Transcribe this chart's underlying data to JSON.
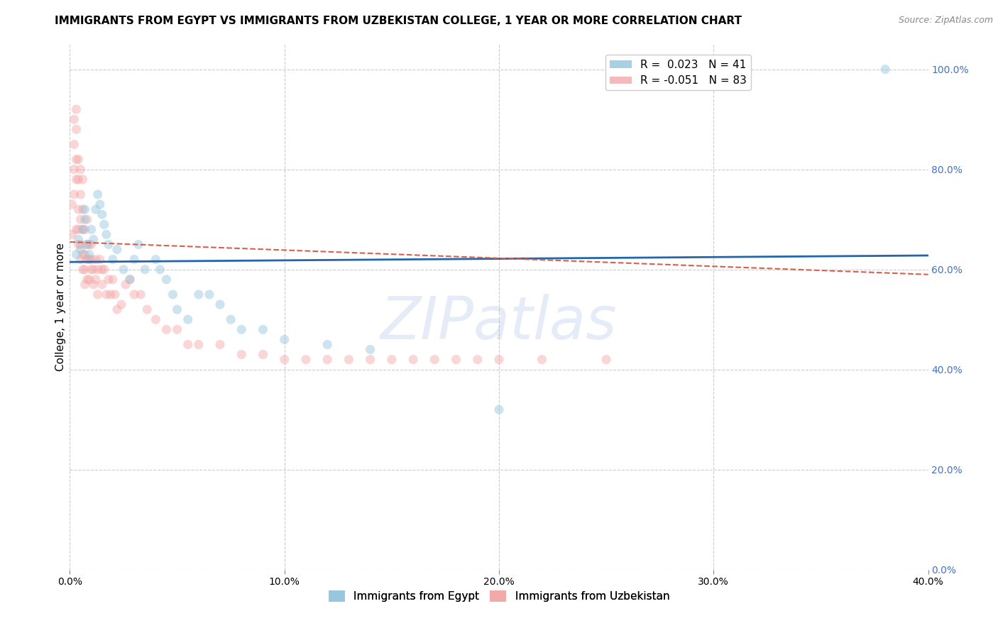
{
  "title": "IMMIGRANTS FROM EGYPT VS IMMIGRANTS FROM UZBEKISTAN COLLEGE, 1 YEAR OR MORE CORRELATION CHART",
  "source": "Source: ZipAtlas.com",
  "ylabel": "College, 1 year or more",
  "watermark": "ZIPatlas",
  "legend_egypt_r": "0.023",
  "legend_egypt_n": "41",
  "legend_uzbek_r": "-0.051",
  "legend_uzbek_n": "83",
  "egypt_color": "#92c5de",
  "uzbek_color": "#f4a6a6",
  "egypt_line_color": "#2166ac",
  "uzbek_line_color": "#d6604d",
  "right_tick_color": "#4472c4",
  "xlim": [
    0.0,
    0.4
  ],
  "ylim": [
    0.0,
    1.05
  ],
  "egypt_points_x": [
    0.003,
    0.004,
    0.005,
    0.006,
    0.007,
    0.007,
    0.008,
    0.009,
    0.01,
    0.011,
    0.012,
    0.013,
    0.014,
    0.015,
    0.016,
    0.017,
    0.018,
    0.02,
    0.022,
    0.025,
    0.028,
    0.03,
    0.032,
    0.035,
    0.04,
    0.042,
    0.045,
    0.048,
    0.05,
    0.055,
    0.06,
    0.065,
    0.07,
    0.075,
    0.08,
    0.09,
    0.1,
    0.12,
    0.14,
    0.2,
    0.38
  ],
  "egypt_points_y": [
    0.63,
    0.66,
    0.64,
    0.68,
    0.72,
    0.7,
    0.65,
    0.63,
    0.68,
    0.66,
    0.72,
    0.75,
    0.73,
    0.71,
    0.69,
    0.67,
    0.65,
    0.62,
    0.64,
    0.6,
    0.58,
    0.62,
    0.65,
    0.6,
    0.62,
    0.6,
    0.58,
    0.55,
    0.52,
    0.5,
    0.55,
    0.55,
    0.53,
    0.5,
    0.48,
    0.48,
    0.46,
    0.45,
    0.44,
    0.32,
    1.0
  ],
  "uzbek_points_x": [
    0.001,
    0.001,
    0.002,
    0.002,
    0.002,
    0.002,
    0.003,
    0.003,
    0.003,
    0.003,
    0.003,
    0.004,
    0.004,
    0.004,
    0.004,
    0.004,
    0.005,
    0.005,
    0.005,
    0.005,
    0.005,
    0.006,
    0.006,
    0.006,
    0.006,
    0.006,
    0.007,
    0.007,
    0.007,
    0.007,
    0.008,
    0.008,
    0.008,
    0.008,
    0.009,
    0.009,
    0.009,
    0.01,
    0.01,
    0.01,
    0.011,
    0.011,
    0.012,
    0.012,
    0.013,
    0.013,
    0.014,
    0.015,
    0.015,
    0.016,
    0.017,
    0.018,
    0.019,
    0.02,
    0.021,
    0.022,
    0.024,
    0.026,
    0.028,
    0.03,
    0.033,
    0.036,
    0.04,
    0.045,
    0.05,
    0.055,
    0.06,
    0.07,
    0.08,
    0.09,
    0.1,
    0.11,
    0.12,
    0.13,
    0.14,
    0.15,
    0.16,
    0.17,
    0.18,
    0.19,
    0.2,
    0.22,
    0.25
  ],
  "uzbek_points_y": [
    0.67,
    0.73,
    0.8,
    0.75,
    0.85,
    0.9,
    0.78,
    0.82,
    0.88,
    0.92,
    0.68,
    0.78,
    0.82,
    0.72,
    0.68,
    0.65,
    0.8,
    0.75,
    0.7,
    0.65,
    0.62,
    0.78,
    0.72,
    0.68,
    0.63,
    0.6,
    0.68,
    0.63,
    0.6,
    0.57,
    0.7,
    0.65,
    0.62,
    0.58,
    0.65,
    0.62,
    0.58,
    0.65,
    0.62,
    0.6,
    0.6,
    0.57,
    0.62,
    0.58,
    0.6,
    0.55,
    0.62,
    0.6,
    0.57,
    0.6,
    0.55,
    0.58,
    0.55,
    0.58,
    0.55,
    0.52,
    0.53,
    0.57,
    0.58,
    0.55,
    0.55,
    0.52,
    0.5,
    0.48,
    0.48,
    0.45,
    0.45,
    0.45,
    0.43,
    0.43,
    0.42,
    0.42,
    0.42,
    0.42,
    0.42,
    0.42,
    0.42,
    0.42,
    0.42,
    0.42,
    0.42,
    0.42,
    0.42
  ],
  "egypt_trend_x": [
    0.0,
    0.4
  ],
  "egypt_trend_y": [
    0.615,
    0.628
  ],
  "uzbek_trend_x": [
    0.0,
    0.4
  ],
  "uzbek_trend_y": [
    0.655,
    0.59
  ],
  "yticks": [
    0.0,
    0.2,
    0.4,
    0.6,
    0.8,
    1.0
  ],
  "ytick_labels_right": [
    "0.0%",
    "20.0%",
    "40.0%",
    "60.0%",
    "80.0%",
    "100.0%"
  ],
  "xticks": [
    0.0,
    0.1,
    0.2,
    0.3,
    0.4
  ],
  "xtick_labels": [
    "0.0%",
    "10.0%",
    "20.0%",
    "30.0%",
    "40.0%"
  ],
  "grid_color": "#cccccc",
  "background_color": "#ffffff",
  "title_fontsize": 11,
  "axis_label_fontsize": 11,
  "tick_fontsize": 10,
  "marker_size": 90,
  "marker_alpha": 0.45,
  "watermark_alpha": 0.13,
  "watermark_fontsize": 60,
  "watermark_color": "#4472c4"
}
